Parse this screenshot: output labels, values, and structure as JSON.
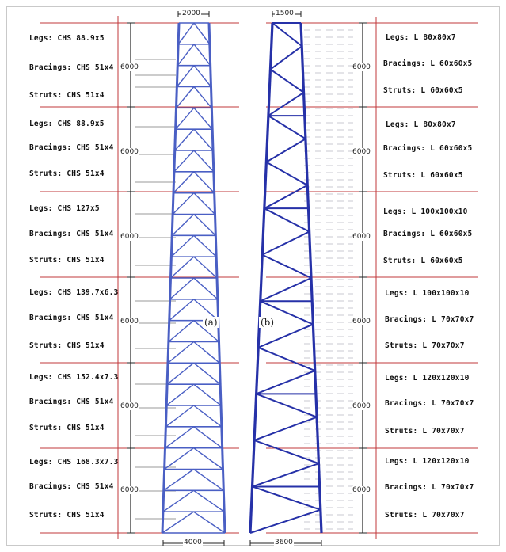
{
  "tower_a": {
    "panel_label": "(a)",
    "top_width": "2000",
    "base_width": "4000",
    "color": "#4a5fc4",
    "segments": [
      {
        "legs": "Legs: CHS 88.9x5",
        "bracings": "Bracings: CHS 51x4",
        "struts": "Struts: CHS 51x4",
        "height": "6000"
      },
      {
        "legs": "Legs: CHS 88.9x5",
        "bracings": "Bracings: CHS 51x4",
        "struts": "Struts: CHS 51x4",
        "height": "6000"
      },
      {
        "legs": "Legs: CHS 127x5",
        "bracings": "Bracings: CHS 51x4",
        "struts": "Struts: CHS 51x4",
        "height": "6000"
      },
      {
        "legs": "Legs: CHS 139.7x6.3",
        "bracings": "Bracings: CHS 51x4",
        "struts": "Struts: CHS 51x4",
        "height": "6000"
      },
      {
        "legs": "Legs: CHS 152.4x7.3",
        "bracings": "Bracings: CHS 51x4",
        "struts": "Struts: CHS 51x4",
        "height": "6000"
      },
      {
        "legs": "Legs: CHS 168.3x7.3",
        "bracings": "Bracings: CHS 51x4",
        "struts": "Struts: CHS 51x4",
        "height": "6000"
      }
    ]
  },
  "tower_b": {
    "panel_label": "(b)",
    "top_width": "1500",
    "base_width": "3600",
    "color": "#2631a8",
    "segments": [
      {
        "legs": "Legs: L 80x80x7",
        "bracings": "Bracings: L 60x60x5",
        "struts": "Struts: L 60x60x5",
        "height": "6000"
      },
      {
        "legs": "Legs: L 80x80x7",
        "bracings": "Bracings: L 60x60x5",
        "struts": "Struts: L 60x60x5",
        "height": "6000"
      },
      {
        "legs": "Legs: L 100x100x10",
        "bracings": "Bracings: L 60x60x5",
        "struts": "Struts: L 60x60x5",
        "height": "6000"
      },
      {
        "legs": "Legs: L 100x100x10",
        "bracings": "Bracings: L 70x70x7",
        "struts": "Struts: L 70x70x7",
        "height": "6000"
      },
      {
        "legs": "Legs: L 120x120x10",
        "bracings": "Bracings: L 70x70x7",
        "struts": "Struts: L 70x70x7",
        "height": "6000"
      },
      {
        "legs": "Legs: L 120x120x10",
        "bracings": "Bracings: L 70x70x7",
        "struts": "Struts: L 70x70x7",
        "height": "6000"
      }
    ]
  },
  "colors": {
    "segment_divider": "#c0393b",
    "dimension_line": "#222222",
    "leader_line": "#9a9a9a"
  }
}
